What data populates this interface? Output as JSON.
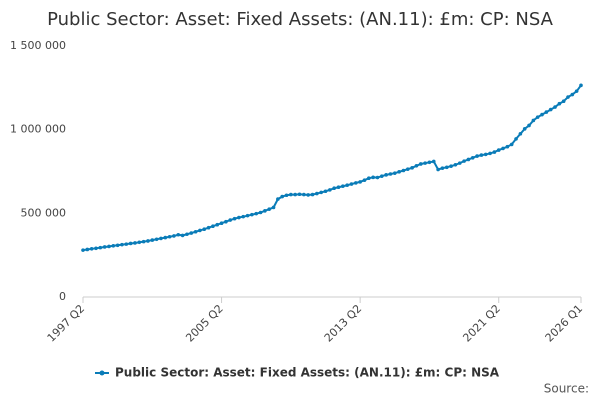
{
  "chart_data": {
    "type": "line",
    "title": "Public Sector: Asset: Fixed Assets: (AN.11): £m: CP: NSA",
    "source": "Source:",
    "categories": [
      "1997 Q2",
      null,
      null,
      null,
      null,
      null,
      null,
      null,
      null,
      null,
      null,
      null,
      null,
      null,
      null,
      null,
      null,
      null,
      null,
      null,
      null,
      null,
      null,
      null,
      null,
      null,
      null,
      null,
      null,
      null,
      null,
      null,
      "2005 Q2",
      null,
      null,
      null,
      null,
      null,
      null,
      null,
      null,
      null,
      null,
      null,
      null,
      null,
      null,
      null,
      null,
      null,
      null,
      null,
      null,
      null,
      null,
      null,
      null,
      null,
      null,
      null,
      null,
      null,
      null,
      null,
      "2013 Q2",
      null,
      null,
      null,
      null,
      null,
      null,
      null,
      null,
      null,
      null,
      null,
      null,
      null,
      null,
      null,
      null,
      null,
      null,
      null,
      null,
      null,
      null,
      null,
      null,
      null,
      null,
      null,
      null,
      null,
      null,
      null,
      "2021 Q2",
      null,
      null,
      null,
      null,
      null,
      null,
      null,
      null,
      null,
      null,
      null,
      null,
      null,
      null,
      null,
      null,
      null,
      null,
      "2026 Q1"
    ],
    "series": [
      {
        "name": "Public Sector: Asset: Fixed Assets: (AN.11): £m: CP: NSA",
        "color": "#0a7cb8",
        "values": [
          280000,
          284000,
          288000,
          291000,
          295000,
          299000,
          302000,
          306000,
          309000,
          313000,
          316000,
          320000,
          323000,
          327000,
          331000,
          335000,
          340000,
          345000,
          350000,
          355000,
          360000,
          365000,
          372000,
          368000,
          375000,
          382000,
          390000,
          398000,
          405000,
          414000,
          423000,
          432000,
          441000,
          450000,
          460000,
          468000,
          475000,
          480000,
          486000,
          492000,
          498000,
          505000,
          515000,
          525000,
          535000,
          585000,
          600000,
          608000,
          612000,
          612000,
          614000,
          612000,
          610000,
          612000,
          618000,
          625000,
          632000,
          640000,
          650000,
          656000,
          662000,
          668000,
          675000,
          682000,
          688000,
          698000,
          710000,
          715000,
          714000,
          722000,
          730000,
          735000,
          740000,
          748000,
          756000,
          764000,
          772000,
          784000,
          795000,
          800000,
          805000,
          810000,
          762000,
          770000,
          775000,
          782000,
          790000,
          800000,
          812000,
          822000,
          832000,
          842000,
          848000,
          852000,
          858000,
          866000,
          878000,
          888000,
          898000,
          912000,
          945000,
          975000,
          1005000,
          1025000,
          1055000,
          1075000,
          1090000,
          1105000,
          1120000,
          1135000,
          1155000,
          1170000,
          1195000,
          1210000,
          1230000,
          1265000
        ]
      }
    ],
    "ylim": [
      0,
      1500000
    ],
    "yticks": [
      0,
      {
        "value": 500000,
        "label": "500 000"
      },
      {
        "value": 1000000,
        "label": "1 000 000"
      },
      {
        "value": 1500000,
        "label": "1 500 000"
      }
    ],
    "grid": false,
    "legend": "bottom"
  }
}
